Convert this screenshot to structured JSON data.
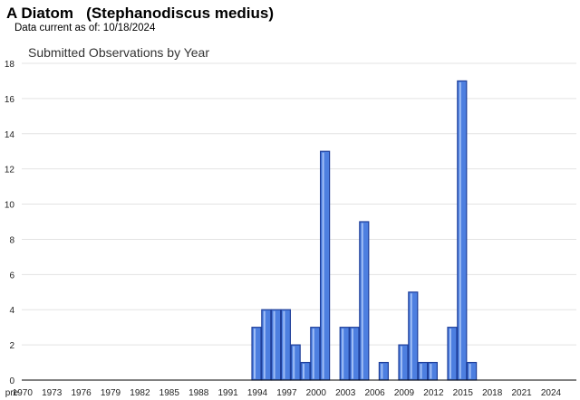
{
  "header": {
    "title": "A Diatom   (Stephanodiscus medius)",
    "subtitle": "Data current as of: 10/18/2024"
  },
  "chart_data": {
    "type": "bar",
    "title": "Submitted Observations by Year",
    "xlabel": "",
    "ylabel": "",
    "ylim": [
      0,
      18
    ],
    "yticks": [
      0,
      2,
      4,
      6,
      8,
      10,
      12,
      14,
      16,
      18
    ],
    "grid": true,
    "bar_color": "#4d7fe0",
    "bar_edge_color": "#1f3f9a",
    "categories": [
      "pre 1970",
      "1970",
      "1971",
      "1972",
      "1973",
      "1974",
      "1975",
      "1976",
      "1977",
      "1978",
      "1979",
      "1980",
      "1981",
      "1982",
      "1983",
      "1984",
      "1985",
      "1986",
      "1987",
      "1988",
      "1989",
      "1990",
      "1991",
      "1992",
      "1993",
      "1994",
      "1995",
      "1996",
      "1997",
      "1998",
      "1999",
      "2000",
      "2001",
      "2002",
      "2003",
      "2004",
      "2005",
      "2006",
      "2007",
      "2008",
      "2009",
      "2010",
      "2011",
      "2012",
      "2013",
      "2014",
      "2015",
      "2016",
      "2017",
      "2018",
      "2019",
      "2020",
      "2021",
      "2022",
      "2023",
      "2024"
    ],
    "values": [
      0,
      0,
      0,
      0,
      0,
      0,
      0,
      0,
      0,
      0,
      0,
      0,
      0,
      0,
      0,
      0,
      0,
      0,
      0,
      0,
      0,
      0,
      0,
      0,
      0,
      3,
      4,
      4,
      4,
      2,
      1,
      3,
      13,
      0,
      3,
      3,
      9,
      0,
      1,
      0,
      2,
      5,
      1,
      1,
      0,
      3,
      17,
      1,
      0,
      0,
      0,
      0,
      0,
      0,
      0,
      0
    ],
    "tick_labels": [
      "pre",
      "1970",
      "1973",
      "1976",
      "1979",
      "1982",
      "1985",
      "1988",
      "1991",
      "1994",
      "1997",
      "2000",
      "2003",
      "2006",
      "2009",
      "2012",
      "2015",
      "2018",
      "2021",
      "2024"
    ]
  }
}
